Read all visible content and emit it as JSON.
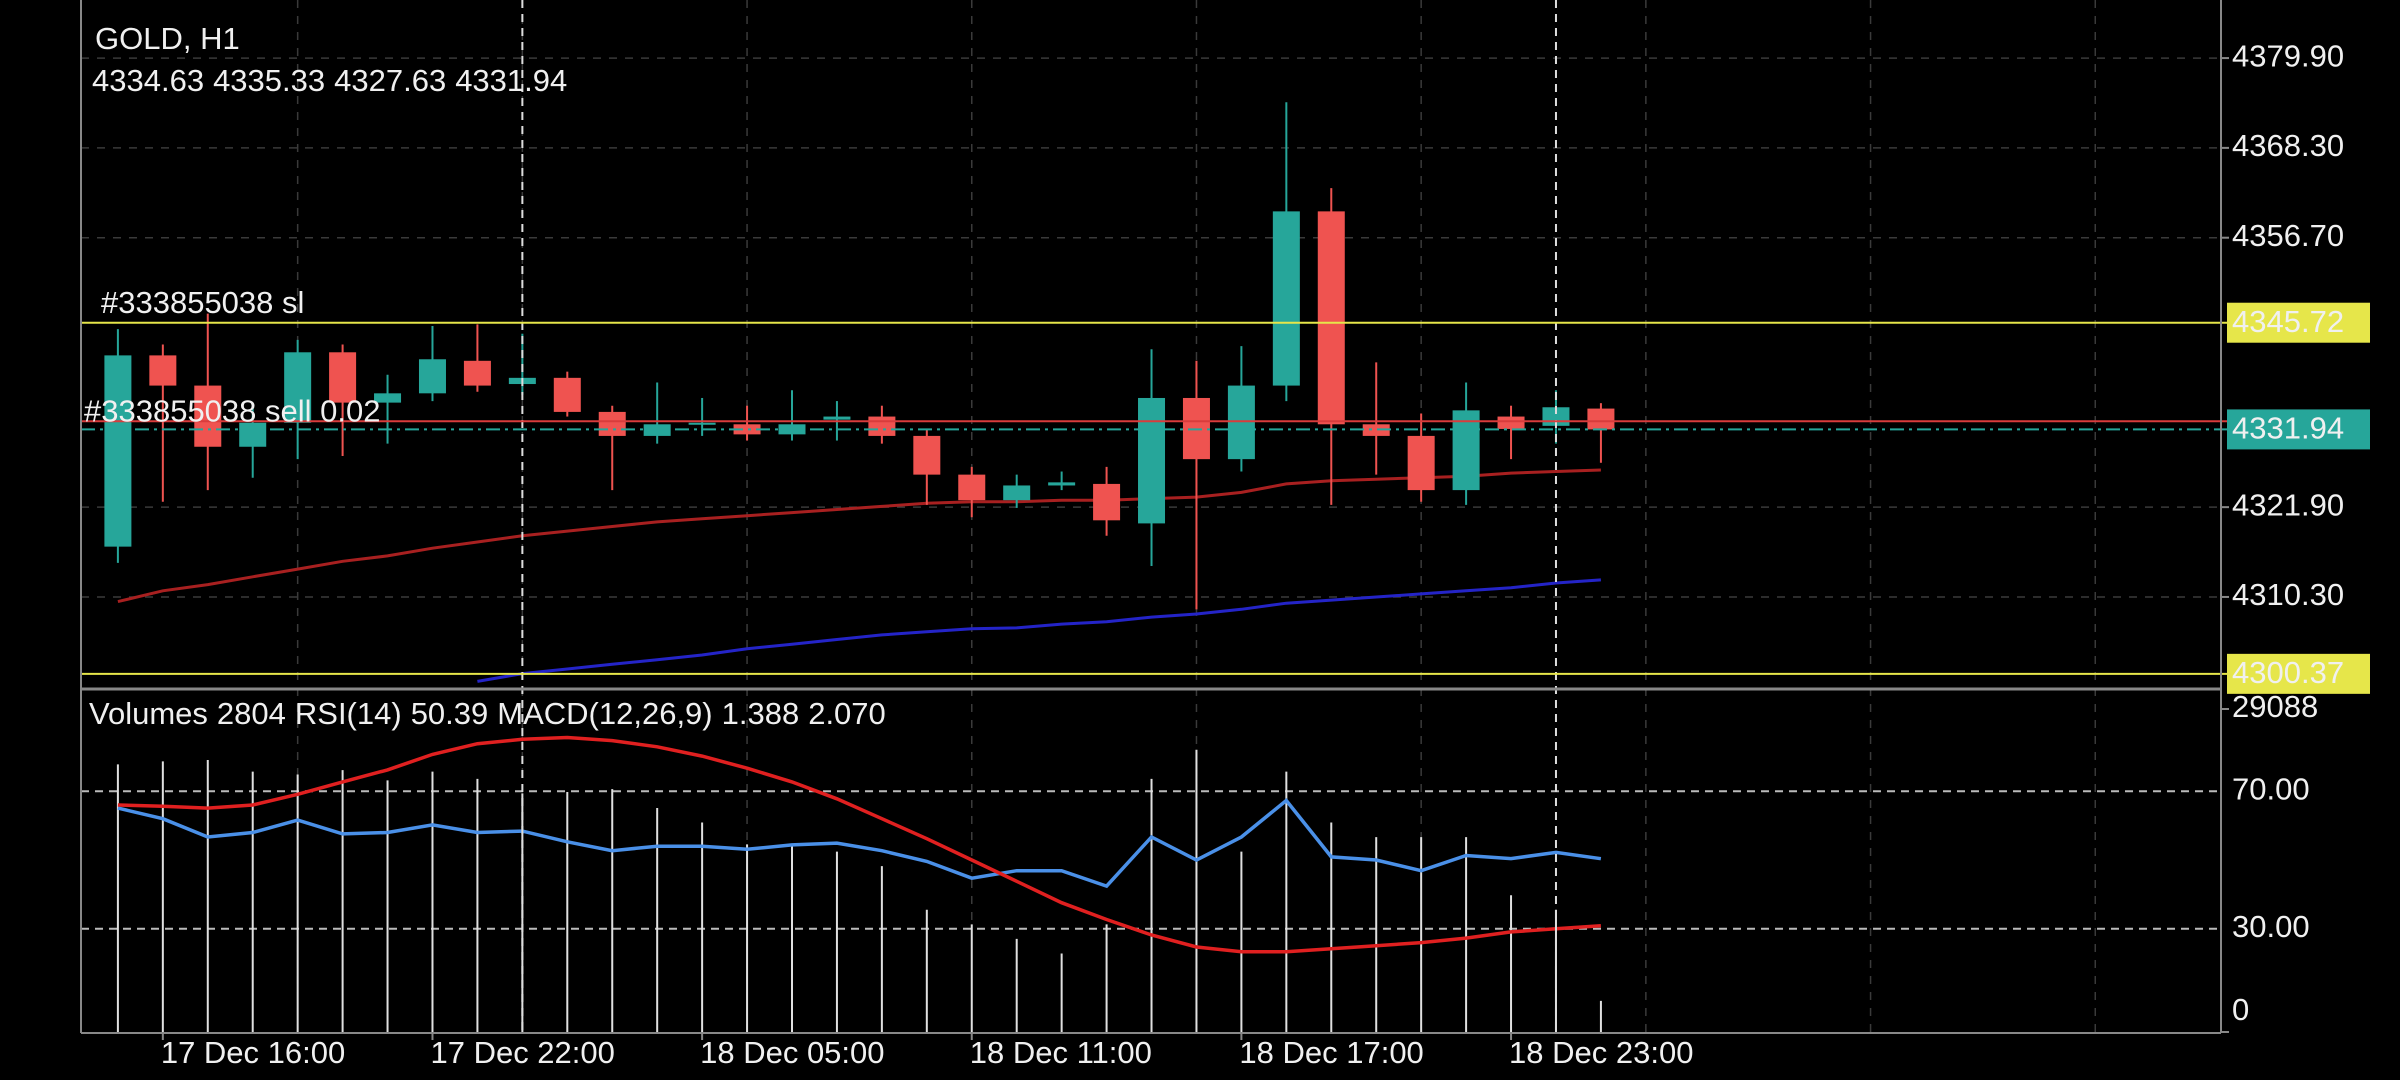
{
  "chart_data": [
    {
      "type": "candlestick",
      "title": "GOLD, H1",
      "open": [
        4316.8,
        4341.5,
        4337.6,
        4329.7,
        4332.8,
        4341.9,
        4335.4,
        4336.6,
        4340.8,
        4337.8,
        4338.6,
        4334.2,
        4331.1,
        4332.6,
        4332.6,
        4331.3,
        4333.2,
        4333.6,
        4331.1,
        4326.1,
        4322.8,
        4324.7,
        4324.9,
        4319.8,
        4336.0,
        4328.1,
        4337.6,
        4360.1,
        4332.6,
        4331.1,
        4324.1,
        4333.6,
        4332.4,
        4334.63
      ],
      "high": [
        4344.9,
        4342.9,
        4346.9,
        4335.0,
        4343.5,
        4342.9,
        4339.0,
        4345.3,
        4345.5,
        4344.3,
        4339.4,
        4335.0,
        4338.0,
        4336.0,
        4335.0,
        4337.0,
        4335.6,
        4335.0,
        4332.0,
        4327.1,
        4326.1,
        4326.5,
        4327.1,
        4342.3,
        4340.8,
        4342.7,
        4374.2,
        4363.1,
        4340.6,
        4334.0,
        4338.0,
        4335.0,
        4337.0,
        4335.33
      ],
      "low": [
        4314.7,
        4322.6,
        4324.1,
        4325.7,
        4328.1,
        4328.5,
        4330.1,
        4335.6,
        4336.8,
        4336.4,
        4333.6,
        4324.1,
        4330.1,
        4331.1,
        4330.5,
        4330.5,
        4330.5,
        4330.1,
        4322.2,
        4320.6,
        4321.8,
        4324.1,
        4318.2,
        4314.3,
        4308.7,
        4326.5,
        4335.6,
        4322.2,
        4326.1,
        4322.6,
        4322.2,
        4328.1,
        4330.1,
        4327.63
      ],
      "close": [
        4341.5,
        4337.6,
        4329.7,
        4332.8,
        4341.9,
        4335.4,
        4336.6,
        4341.0,
        4337.6,
        4338.6,
        4334.2,
        4331.1,
        4332.6,
        4332.8,
        4331.3,
        4332.6,
        4333.6,
        4331.1,
        4326.1,
        4322.8,
        4324.7,
        4325.1,
        4320.2,
        4336.0,
        4328.1,
        4337.6,
        4360.1,
        4332.6,
        4331.1,
        4324.1,
        4334.4,
        4332.0,
        4334.8,
        4331.94
      ],
      "up_color": "#26a69a",
      "down_color": "#ef5350",
      "ylim": [
        4298.8,
        4387.4
      ],
      "yticks": [
        {
          "value": 4379.9,
          "label": "4379.90"
        },
        {
          "value": 4368.3,
          "label": "4368.30"
        },
        {
          "value": 4356.7,
          "label": "4356.70"
        },
        {
          "value": 4321.9,
          "label": "4321.90"
        },
        {
          "value": 4310.3,
          "label": "4310.30"
        }
      ],
      "grid": true,
      "series": [
        {
          "color": "#a82020",
          "values": [
            4309.7,
            4311.1,
            4311.9,
            4312.9,
            4313.9,
            4314.9,
            4315.6,
            4316.6,
            4317.4,
            4318.2,
            4318.8,
            4319.4,
            4320.0,
            4320.4,
            4320.8,
            4321.2,
            4321.6,
            4322.0,
            4322.4,
            4322.6,
            4322.6,
            4322.8,
            4322.8,
            4323.0,
            4323.2,
            4323.8,
            4324.9,
            4325.3,
            4325.5,
            4325.7,
            4325.9,
            4326.3,
            4326.5,
            4326.7
          ]
        },
        {
          "color": "#2424c8",
          "values": [
            null,
            null,
            null,
            null,
            null,
            null,
            null,
            null,
            4299.4,
            4300.4,
            4301.0,
            4301.6,
            4302.2,
            4302.8,
            4303.6,
            4304.2,
            4304.8,
            4305.4,
            4305.8,
            4306.2,
            4306.3,
            4306.8,
            4307.1,
            4307.7,
            4308.1,
            4308.7,
            4309.5,
            4309.9,
            4310.3,
            4310.7,
            4311.1,
            4311.5,
            4312.1,
            4312.5
          ]
        }
      ],
      "levels": [
        {
          "label": "#333855038 sl",
          "value": 4345.72,
          "color": "#e6e64a",
          "tag": true
        },
        {
          "label": "#333855038 sell 0.02",
          "value": 4333.0,
          "color": "#d83c3c"
        },
        {
          "value": 4300.37,
          "color": "#e6e64a",
          "tag": true
        }
      ],
      "bid_color": "#26a69a"
    },
    {
      "type": "indicator",
      "categories": [
        null,
        "17 Dec 16:00",
        null,
        null,
        null,
        null,
        null,
        "17 Dec 22:00",
        null,
        null,
        null,
        null,
        null,
        "18 Dec 05:00",
        null,
        null,
        null,
        null,
        null,
        "18 Dec 11:00",
        null,
        null,
        null,
        null,
        null,
        "18 Dec 17:00",
        null,
        null,
        null,
        null,
        null,
        "18 Dec 23:00",
        null,
        null
      ],
      "bars": {
        "name": "Volumes",
        "color": "#e0e0e0",
        "axis": "y2",
        "values": [
          24104,
          24366,
          24497,
          23449,
          23187,
          23580,
          22663,
          23449,
          22794,
          21484,
          21615,
          21877,
          20174,
          18864,
          16899,
          16899,
          16244,
          14934,
          11004,
          9694,
          8384,
          7074,
          9694,
          22794,
          25414,
          16244,
          23449,
          18864,
          17554,
          17554,
          17554,
          12314,
          11004,
          2804
        ]
      },
      "series": [
        {
          "name": "RSI(14)",
          "color": "#4a90e8",
          "values": [
            65.1,
            62.0,
            56.7,
            58.0,
            61.6,
            57.6,
            58.0,
            60.2,
            58.0,
            58.4,
            55.3,
            52.7,
            54.0,
            54.0,
            53.1,
            54.4,
            54.9,
            52.7,
            49.6,
            44.7,
            46.9,
            46.9,
            42.4,
            56.7,
            50.0,
            56.7,
            67.3,
            50.9,
            50.0,
            46.9,
            51.3,
            50.4,
            52.2,
            50.39
          ]
        },
        {
          "name": "MACD(12,26,9)",
          "color": "#e02020",
          "values": [
            66.0,
            65.6,
            65.1,
            66.0,
            69.1,
            72.7,
            76.2,
            80.7,
            83.8,
            85.1,
            85.6,
            84.7,
            82.9,
            80.2,
            76.7,
            72.7,
            67.8,
            62.0,
            56.2,
            50.0,
            43.8,
            37.6,
            32.7,
            28.2,
            24.7,
            23.3,
            23.3,
            24.2,
            25.1,
            26.0,
            27.3,
            29.1,
            30.0,
            30.9
          ],
          "readout": [
            1.388,
            {
              "value": 2.07,
              "label": "2.070"
            }
          ]
        }
      ],
      "ylim": [
        0,
        100
      ],
      "yticks": [
        {
          "value": 30,
          "label": "30.00"
        },
        {
          "value": 70,
          "label": "70.00"
        }
      ],
      "y2lim": [
        0,
        29088
      ],
      "y2ticks": [
        29088,
        0
      ],
      "grid": true
    }
  ]
}
